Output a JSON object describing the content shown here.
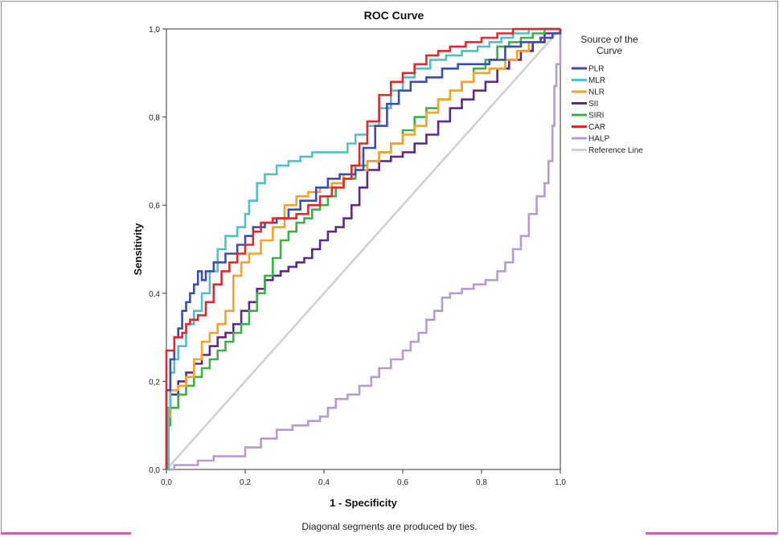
{
  "chart_data": {
    "type": "line",
    "title": "ROC Curve",
    "xlabel": "1 - Specificity",
    "ylabel": "Sensitivity",
    "xlim": [
      0,
      1
    ],
    "ylim": [
      0,
      1
    ],
    "xticks": [
      "0,0",
      "0,2",
      "0,4",
      "0,6",
      "0,8",
      "1,0"
    ],
    "yticks": [
      "0,0",
      "0,2",
      "0,4",
      "0,6",
      "0,8",
      "1,0"
    ],
    "grid": false,
    "legend_title": "Source of the Curve",
    "legend_position": "right",
    "footnote": "Diagonal segments are produced by ties.",
    "series": [
      {
        "name": "PLR",
        "color": "#3a4eb0",
        "points": [
          [
            0,
            0
          ],
          [
            0,
            0.18
          ],
          [
            0.01,
            0.25
          ],
          [
            0.02,
            0.3
          ],
          [
            0.03,
            0.32
          ],
          [
            0.04,
            0.36
          ],
          [
            0.05,
            0.38
          ],
          [
            0.06,
            0.4
          ],
          [
            0.07,
            0.42
          ],
          [
            0.08,
            0.45
          ],
          [
            0.09,
            0.43
          ],
          [
            0.1,
            0.45
          ],
          [
            0.12,
            0.47
          ],
          [
            0.15,
            0.49
          ],
          [
            0.18,
            0.51
          ],
          [
            0.2,
            0.53
          ],
          [
            0.22,
            0.55
          ],
          [
            0.25,
            0.56
          ],
          [
            0.28,
            0.57
          ],
          [
            0.31,
            0.59
          ],
          [
            0.34,
            0.61
          ],
          [
            0.38,
            0.64
          ],
          [
            0.41,
            0.66
          ],
          [
            0.44,
            0.67
          ],
          [
            0.48,
            0.68
          ],
          [
            0.5,
            0.73
          ],
          [
            0.53,
            0.78
          ],
          [
            0.56,
            0.83
          ],
          [
            0.59,
            0.86
          ],
          [
            0.62,
            0.88
          ],
          [
            0.66,
            0.89
          ],
          [
            0.7,
            0.91
          ],
          [
            0.74,
            0.92
          ],
          [
            0.78,
            0.92
          ],
          [
            0.82,
            0.93
          ],
          [
            0.86,
            0.96
          ],
          [
            0.9,
            0.97
          ],
          [
            0.95,
            0.98
          ],
          [
            0.98,
            0.99
          ],
          [
            1,
            1
          ]
        ]
      },
      {
        "name": "MLR",
        "color": "#4fc0c6",
        "points": [
          [
            0,
            0
          ],
          [
            0.005,
            0.14
          ],
          [
            0.01,
            0.22
          ],
          [
            0.02,
            0.25
          ],
          [
            0.03,
            0.28
          ],
          [
            0.05,
            0.33
          ],
          [
            0.07,
            0.36
          ],
          [
            0.09,
            0.4
          ],
          [
            0.11,
            0.45
          ],
          [
            0.13,
            0.5
          ],
          [
            0.15,
            0.53
          ],
          [
            0.18,
            0.55
          ],
          [
            0.2,
            0.58
          ],
          [
            0.21,
            0.61
          ],
          [
            0.23,
            0.65
          ],
          [
            0.25,
            0.67
          ],
          [
            0.28,
            0.69
          ],
          [
            0.31,
            0.7
          ],
          [
            0.34,
            0.71
          ],
          [
            0.37,
            0.72
          ],
          [
            0.41,
            0.72
          ],
          [
            0.44,
            0.72
          ],
          [
            0.46,
            0.74
          ],
          [
            0.48,
            0.76
          ],
          [
            0.51,
            0.78
          ],
          [
            0.54,
            0.82
          ],
          [
            0.57,
            0.86
          ],
          [
            0.6,
            0.89
          ],
          [
            0.63,
            0.91
          ],
          [
            0.67,
            0.93
          ],
          [
            0.71,
            0.94
          ],
          [
            0.75,
            0.95
          ],
          [
            0.79,
            0.96
          ],
          [
            0.82,
            0.97
          ],
          [
            0.85,
            0.98
          ],
          [
            0.88,
            0.99
          ],
          [
            0.92,
            1.0
          ],
          [
            1,
            1
          ]
        ]
      },
      {
        "name": "NLR",
        "color": "#f5a12a",
        "points": [
          [
            0,
            0
          ],
          [
            0.005,
            0.12
          ],
          [
            0.01,
            0.18
          ],
          [
            0.03,
            0.19
          ],
          [
            0.05,
            0.21
          ],
          [
            0.07,
            0.25
          ],
          [
            0.09,
            0.29
          ],
          [
            0.11,
            0.31
          ],
          [
            0.13,
            0.33
          ],
          [
            0.15,
            0.36
          ],
          [
            0.17,
            0.44
          ],
          [
            0.19,
            0.47
          ],
          [
            0.21,
            0.49
          ],
          [
            0.24,
            0.52
          ],
          [
            0.27,
            0.55
          ],
          [
            0.3,
            0.6
          ],
          [
            0.33,
            0.62
          ],
          [
            0.36,
            0.63
          ],
          [
            0.39,
            0.64
          ],
          [
            0.42,
            0.65
          ],
          [
            0.45,
            0.67
          ],
          [
            0.48,
            0.68
          ],
          [
            0.51,
            0.7
          ],
          [
            0.54,
            0.72
          ],
          [
            0.57,
            0.74
          ],
          [
            0.6,
            0.76
          ],
          [
            0.63,
            0.78
          ],
          [
            0.66,
            0.81
          ],
          [
            0.69,
            0.84
          ],
          [
            0.72,
            0.86
          ],
          [
            0.75,
            0.88
          ],
          [
            0.78,
            0.9
          ],
          [
            0.82,
            0.91
          ],
          [
            0.86,
            0.93
          ],
          [
            0.89,
            0.95
          ],
          [
            0.92,
            0.97
          ],
          [
            0.95,
            0.98
          ],
          [
            0.98,
            0.99
          ],
          [
            1,
            1
          ]
        ]
      },
      {
        "name": "SII",
        "color": "#5e2a86",
        "points": [
          [
            0,
            0
          ],
          [
            0.005,
            0.13
          ],
          [
            0.01,
            0.17
          ],
          [
            0.03,
            0.2
          ],
          [
            0.05,
            0.22
          ],
          [
            0.07,
            0.24
          ],
          [
            0.09,
            0.26
          ],
          [
            0.11,
            0.28
          ],
          [
            0.13,
            0.3
          ],
          [
            0.15,
            0.31
          ],
          [
            0.17,
            0.33
          ],
          [
            0.19,
            0.36
          ],
          [
            0.21,
            0.38
          ],
          [
            0.23,
            0.41
          ],
          [
            0.25,
            0.43
          ],
          [
            0.27,
            0.44
          ],
          [
            0.29,
            0.45
          ],
          [
            0.31,
            0.46
          ],
          [
            0.33,
            0.47
          ],
          [
            0.35,
            0.48
          ],
          [
            0.37,
            0.5
          ],
          [
            0.39,
            0.52
          ],
          [
            0.41,
            0.54
          ],
          [
            0.43,
            0.55
          ],
          [
            0.45,
            0.57
          ],
          [
            0.47,
            0.6
          ],
          [
            0.49,
            0.64
          ],
          [
            0.51,
            0.68
          ],
          [
            0.54,
            0.7
          ],
          [
            0.57,
            0.71
          ],
          [
            0.6,
            0.72
          ],
          [
            0.63,
            0.74
          ],
          [
            0.66,
            0.76
          ],
          [
            0.69,
            0.79
          ],
          [
            0.72,
            0.82
          ],
          [
            0.75,
            0.84
          ],
          [
            0.78,
            0.86
          ],
          [
            0.81,
            0.88
          ],
          [
            0.84,
            0.91
          ],
          [
            0.87,
            0.93
          ],
          [
            0.9,
            0.95
          ],
          [
            0.93,
            0.97
          ],
          [
            0.96,
            0.99
          ],
          [
            1,
            1
          ]
        ]
      },
      {
        "name": "SIRI",
        "color": "#3db04a",
        "points": [
          [
            0,
            0
          ],
          [
            0.005,
            0.1
          ],
          [
            0.01,
            0.14
          ],
          [
            0.03,
            0.17
          ],
          [
            0.05,
            0.19
          ],
          [
            0.07,
            0.21
          ],
          [
            0.09,
            0.23
          ],
          [
            0.11,
            0.25
          ],
          [
            0.13,
            0.27
          ],
          [
            0.15,
            0.29
          ],
          [
            0.17,
            0.31
          ],
          [
            0.19,
            0.33
          ],
          [
            0.21,
            0.36
          ],
          [
            0.23,
            0.4
          ],
          [
            0.25,
            0.44
          ],
          [
            0.27,
            0.48
          ],
          [
            0.29,
            0.52
          ],
          [
            0.31,
            0.54
          ],
          [
            0.33,
            0.56
          ],
          [
            0.35,
            0.57
          ],
          [
            0.37,
            0.59
          ],
          [
            0.39,
            0.6
          ],
          [
            0.41,
            0.62
          ],
          [
            0.43,
            0.64
          ],
          [
            0.45,
            0.66
          ],
          [
            0.48,
            0.69
          ],
          [
            0.51,
            0.7
          ],
          [
            0.54,
            0.72
          ],
          [
            0.57,
            0.74
          ],
          [
            0.6,
            0.77
          ],
          [
            0.63,
            0.8
          ],
          [
            0.66,
            0.82
          ],
          [
            0.69,
            0.84
          ],
          [
            0.72,
            0.86
          ],
          [
            0.75,
            0.88
          ],
          [
            0.78,
            0.91
          ],
          [
            0.81,
            0.93
          ],
          [
            0.84,
            0.96
          ],
          [
            0.87,
            0.97
          ],
          [
            0.9,
            0.98
          ],
          [
            0.93,
            0.99
          ],
          [
            0.96,
            1.0
          ],
          [
            1,
            1
          ]
        ]
      },
      {
        "name": "CAR",
        "color": "#e5262b",
        "points": [
          [
            0,
            0
          ],
          [
            0,
            0.27
          ],
          [
            0.02,
            0.3
          ],
          [
            0.04,
            0.31
          ],
          [
            0.05,
            0.33
          ],
          [
            0.06,
            0.34
          ],
          [
            0.08,
            0.35
          ],
          [
            0.1,
            0.38
          ],
          [
            0.12,
            0.42
          ],
          [
            0.14,
            0.45
          ],
          [
            0.16,
            0.47
          ],
          [
            0.18,
            0.49
          ],
          [
            0.2,
            0.51
          ],
          [
            0.22,
            0.54
          ],
          [
            0.24,
            0.56
          ],
          [
            0.27,
            0.57
          ],
          [
            0.3,
            0.57
          ],
          [
            0.33,
            0.58
          ],
          [
            0.36,
            0.6
          ],
          [
            0.39,
            0.62
          ],
          [
            0.42,
            0.64
          ],
          [
            0.45,
            0.66
          ],
          [
            0.47,
            0.69
          ],
          [
            0.49,
            0.74
          ],
          [
            0.51,
            0.79
          ],
          [
            0.54,
            0.85
          ],
          [
            0.57,
            0.88
          ],
          [
            0.6,
            0.9
          ],
          [
            0.63,
            0.92
          ],
          [
            0.66,
            0.94
          ],
          [
            0.69,
            0.95
          ],
          [
            0.72,
            0.96
          ],
          [
            0.76,
            0.97
          ],
          [
            0.8,
            0.98
          ],
          [
            0.84,
            0.99
          ],
          [
            0.88,
            1.0
          ],
          [
            1,
            1
          ]
        ]
      },
      {
        "name": "HALP",
        "color": "#b79bd0",
        "points": [
          [
            0,
            0
          ],
          [
            0.02,
            0.01
          ],
          [
            0.05,
            0.01
          ],
          [
            0.08,
            0.02
          ],
          [
            0.12,
            0.03
          ],
          [
            0.16,
            0.03
          ],
          [
            0.2,
            0.05
          ],
          [
            0.24,
            0.07
          ],
          [
            0.28,
            0.09
          ],
          [
            0.32,
            0.1
          ],
          [
            0.36,
            0.11
          ],
          [
            0.39,
            0.12
          ],
          [
            0.41,
            0.14
          ],
          [
            0.43,
            0.16
          ],
          [
            0.46,
            0.17
          ],
          [
            0.49,
            0.19
          ],
          [
            0.52,
            0.21
          ],
          [
            0.54,
            0.23
          ],
          [
            0.57,
            0.25
          ],
          [
            0.6,
            0.27
          ],
          [
            0.62,
            0.29
          ],
          [
            0.64,
            0.31
          ],
          [
            0.66,
            0.34
          ],
          [
            0.68,
            0.36
          ],
          [
            0.7,
            0.39
          ],
          [
            0.72,
            0.4
          ],
          [
            0.75,
            0.41
          ],
          [
            0.78,
            0.42
          ],
          [
            0.81,
            0.43
          ],
          [
            0.84,
            0.45
          ],
          [
            0.86,
            0.47
          ],
          [
            0.88,
            0.5
          ],
          [
            0.9,
            0.53
          ],
          [
            0.92,
            0.58
          ],
          [
            0.94,
            0.62
          ],
          [
            0.96,
            0.65
          ],
          [
            0.97,
            0.7
          ],
          [
            0.98,
            0.78
          ],
          [
            0.985,
            0.87
          ],
          [
            0.99,
            0.92
          ],
          [
            1,
            1
          ]
        ]
      },
      {
        "name": "Reference Line",
        "color": "#cfcfcf",
        "points": [
          [
            0,
            0
          ],
          [
            1,
            1
          ]
        ]
      }
    ]
  }
}
